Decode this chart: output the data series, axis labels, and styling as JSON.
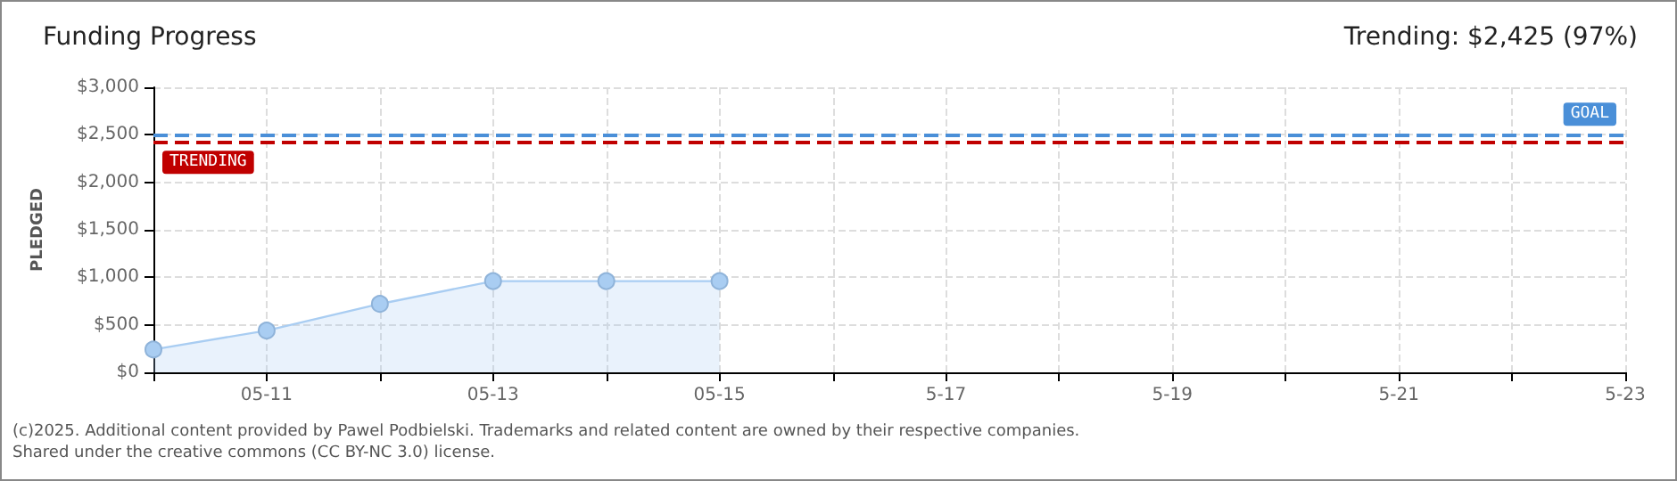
{
  "chart_data": {
    "type": "area",
    "title": "Funding Progress",
    "subtitle": "Trending: $2,425 (97%)",
    "ylabel": "PLEDGED",
    "x": [
      "--05-10",
      "--05-11",
      "--05-12",
      "--05-13",
      "--05-14",
      "--05-15"
    ],
    "series": [
      {
        "color": "#a9cdf2",
        "values": [
          240,
          440,
          720,
          960,
          960,
          960
        ]
      }
    ],
    "xlim": [
      "--05-10",
      "--05-23"
    ],
    "xticks": [
      {
        "value": "--05-10",
        "label": null
      },
      {
        "value": "--05-11",
        "label": "05-11"
      },
      {
        "value": "--05-12",
        "label": null
      },
      {
        "value": "--05-13",
        "label": "05-13"
      },
      {
        "value": "--05-14",
        "label": null
      },
      {
        "value": "--05-15",
        "label": "05-15"
      },
      {
        "value": "--05-16",
        "label": null
      },
      {
        "value": "--05-17",
        "label": "5-17"
      },
      {
        "value": "--05-18",
        "label": null
      },
      {
        "value": "--05-19",
        "label": "5-19"
      },
      {
        "value": "--05-20",
        "label": null
      },
      {
        "value": "--05-21",
        "label": "5-21"
      },
      {
        "value": "--05-22",
        "label": null
      },
      {
        "value": "--05-23",
        "label": "5-23"
      }
    ],
    "ylim": [
      0,
      3000
    ],
    "yticks": [
      {
        "value": 0,
        "label": "$0"
      },
      {
        "value": 500,
        "label": "$500"
      },
      {
        "value": 1000,
        "label": "$1,000"
      },
      {
        "value": 1500,
        "label": "$1,500"
      },
      {
        "value": 2000,
        "label": "$2,000"
      },
      {
        "value": 2500,
        "label": "$2,500"
      },
      {
        "value": 3000,
        "label": "$3,000"
      }
    ],
    "ref_lines": [
      {
        "axis": "y",
        "value": 2500,
        "label": "GOAL",
        "color": "#4a8fd8",
        "line_style": "dashed"
      },
      {
        "axis": "y",
        "value": 2425,
        "label": "TRENDING",
        "color": "#c00000",
        "line_style": "dashed"
      }
    ],
    "annotations": [
      "(c)2025. Additional content provided by Pawel Podbielski. Trademarks and related content are owned by their respective companies.",
      "Shared under the creative commons (CC BY-NC 3.0) license."
    ],
    "grid": true,
    "marker": "circle"
  }
}
